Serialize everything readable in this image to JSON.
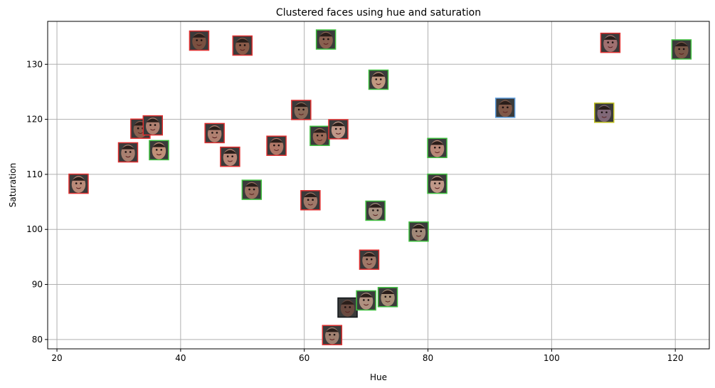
{
  "chart_data": {
    "type": "scatter",
    "title": "Clustered faces using hue and saturation",
    "xlabel": "Hue",
    "ylabel": "Saturation",
    "xlim": [
      18.5,
      125.5
    ],
    "ylim": [
      78.3,
      137.8
    ],
    "xticks": [
      20,
      40,
      60,
      80,
      100,
      120
    ],
    "yticks": [
      80,
      90,
      100,
      110,
      120,
      130
    ],
    "grid": true,
    "marker": "face-thumbnail",
    "points": [
      {
        "x": 23.5,
        "y": 108.3,
        "skin": "#b98a78",
        "frame": "#e03030"
      },
      {
        "x": 31.5,
        "y": 114.0,
        "skin": "#a88070",
        "frame": "#e03030"
      },
      {
        "x": 33.5,
        "y": 118.3,
        "skin": "#8a6050",
        "frame": "#e03030"
      },
      {
        "x": 35.5,
        "y": 118.9,
        "skin": "#b08070",
        "frame": "#e03030"
      },
      {
        "x": 36.5,
        "y": 114.4,
        "skin": "#c09078",
        "frame": "#40c040"
      },
      {
        "x": 43.0,
        "y": 134.3,
        "skin": "#7a5040",
        "frame": "#e03030"
      },
      {
        "x": 45.5,
        "y": 117.5,
        "skin": "#b08070",
        "frame": "#e03030"
      },
      {
        "x": 48.0,
        "y": 113.2,
        "skin": "#b88878",
        "frame": "#e03030"
      },
      {
        "x": 50.0,
        "y": 133.4,
        "skin": "#8a5a48",
        "frame": "#e03030"
      },
      {
        "x": 51.5,
        "y": 107.2,
        "skin": "#9a7060",
        "frame": "#40c040"
      },
      {
        "x": 55.5,
        "y": 115.2,
        "skin": "#b07868",
        "frame": "#e03030"
      },
      {
        "x": 59.5,
        "y": 121.7,
        "skin": "#8a6a58",
        "frame": "#e03030"
      },
      {
        "x": 61.0,
        "y": 105.3,
        "skin": "#a07868",
        "frame": "#e03030"
      },
      {
        "x": 62.5,
        "y": 117.0,
        "skin": "#9a6a58",
        "frame": "#40c040"
      },
      {
        "x": 63.5,
        "y": 134.5,
        "skin": "#8a6050",
        "frame": "#40c040"
      },
      {
        "x": 64.5,
        "y": 80.8,
        "skin": "#a08070",
        "frame": "#e03030"
      },
      {
        "x": 65.5,
        "y": 118.2,
        "skin": "#c09888",
        "frame": "#e03030"
      },
      {
        "x": 67.0,
        "y": 85.8,
        "skin": "#6a4a40",
        "frame": "#101418"
      },
      {
        "x": 70.0,
        "y": 87.1,
        "skin": "#b09080",
        "frame": "#40c040"
      },
      {
        "x": 70.5,
        "y": 94.5,
        "skin": "#a07868",
        "frame": "#e03030"
      },
      {
        "x": 71.5,
        "y": 103.4,
        "skin": "#a89080",
        "frame": "#40c040"
      },
      {
        "x": 72.0,
        "y": 127.2,
        "skin": "#c09880",
        "frame": "#40c040"
      },
      {
        "x": 73.5,
        "y": 87.7,
        "skin": "#a89078",
        "frame": "#40c040"
      },
      {
        "x": 78.5,
        "y": 99.6,
        "skin": "#a08878",
        "frame": "#40c040"
      },
      {
        "x": 81.5,
        "y": 114.8,
        "skin": "#b88878",
        "frame": "#40c040"
      },
      {
        "x": 81.5,
        "y": 108.3,
        "skin": "#c09888",
        "frame": "#40c040"
      },
      {
        "x": 92.5,
        "y": 122.1,
        "skin": "#805848",
        "frame": "#60a0e0"
      },
      {
        "x": 108.5,
        "y": 121.2,
        "skin": "#806878",
        "frame": "#c0c020"
      },
      {
        "x": 109.5,
        "y": 133.9,
        "skin": "#a07070",
        "frame": "#e03030"
      },
      {
        "x": 121.0,
        "y": 132.7,
        "skin": "#7a5848",
        "frame": "#40c040"
      }
    ]
  }
}
